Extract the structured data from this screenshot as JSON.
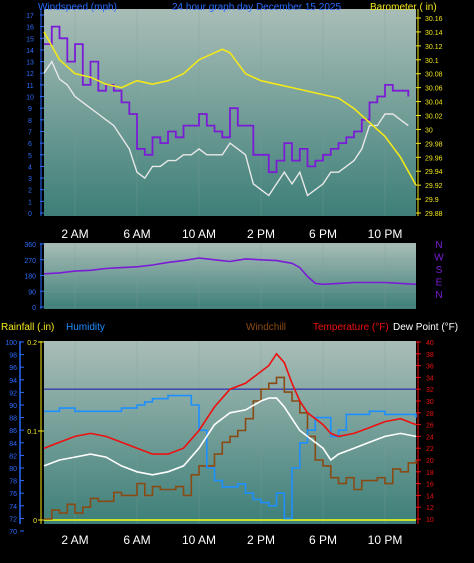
{
  "colors": {
    "background": "#000000",
    "panel_top": "#a9bdb7",
    "panel_bottom": "#3d7f78",
    "wind": "#7a1cd6",
    "gust": "#7a1cd6",
    "wind_avg": "#e8e8e8",
    "barometer": "#f2e81a",
    "direction": "#7a1cd6",
    "rain": "#c8e22a",
    "humidity": "#1e8fff",
    "windchill": "#8a4a14",
    "temperature": "#ee1010",
    "dewpoint": "#ffffff",
    "tick_blue": "#2a6cff",
    "tick_yellow": "#f2e81a",
    "tick_red": "#ee1010",
    "grid": "#7f9b96",
    "threshold": "#3a3aa8"
  },
  "chart_data": [
    {
      "type": "line",
      "name": "wind_barometer",
      "title": "24 hour graph day   December 15 2025",
      "left_label": "Windspeed (mph)",
      "right_label": "Barometer ( in)",
      "x_unit": "hours since midnight",
      "xlim": [
        0,
        24
      ],
      "x_ticks": [
        {
          "x": 2,
          "label": "2 AM"
        },
        {
          "x": 6,
          "label": "6 AM"
        },
        {
          "x": 10,
          "label": "10 AM"
        },
        {
          "x": 14,
          "label": "2 PM"
        },
        {
          "x": 18,
          "label": "6 PM"
        },
        {
          "x": 22,
          "label": "10 PM"
        }
      ],
      "y_left": {
        "min": 0,
        "max": 17,
        "ticks": [
          0,
          1,
          2,
          3,
          4,
          5,
          6,
          7,
          8,
          9,
          10,
          11,
          12,
          13,
          14,
          15,
          16,
          17
        ]
      },
      "y_right": {
        "min": 29.88,
        "max": 30.16,
        "ticks": [
          "29.88",
          "29.9",
          "29.92",
          "29.94",
          "29.96",
          "29.98",
          "30",
          "30.02",
          "30.04",
          "30.06",
          "30.08",
          "30.1",
          "30.12",
          "30.14",
          "30.16"
        ]
      },
      "series": [
        {
          "key": "gust",
          "axis": "left",
          "x": [
            0,
            0.5,
            1,
            1.5,
            2,
            2.5,
            3,
            3.5,
            4,
            4.5,
            5,
            5.5,
            6,
            6.5,
            7,
            7.5,
            8,
            8.5,
            9,
            9.5,
            10,
            10.5,
            11,
            11.5,
            12,
            12.5,
            13,
            13.5,
            14,
            14.5,
            15,
            15.5,
            16,
            16.5,
            17,
            17.5,
            18,
            18.5,
            19,
            19.5,
            20,
            20.5,
            21,
            21.5,
            22,
            22.5,
            23,
            23.5
          ],
          "y": [
            14.5,
            16,
            15,
            13,
            14.5,
            11,
            13,
            10.5,
            11,
            10.5,
            9.5,
            8.5,
            5.5,
            5,
            6.5,
            6,
            7,
            6.5,
            7.5,
            7.5,
            8.5,
            7.5,
            7,
            6.5,
            9,
            7.5,
            7.5,
            5,
            5,
            3.5,
            4.5,
            6,
            4.5,
            5.5,
            4,
            4.5,
            5,
            5.5,
            6,
            6.5,
            7,
            8,
            9.5,
            10,
            11,
            10.5,
            10.5,
            10
          ]
        },
        {
          "key": "wind_avg",
          "axis": "left",
          "x": [
            0,
            0.5,
            1,
            1.5,
            2,
            2.5,
            3,
            3.5,
            4,
            4.5,
            5,
            5.5,
            6,
            6.5,
            7,
            7.5,
            8,
            8.5,
            9,
            9.5,
            10,
            10.5,
            11,
            11.5,
            12,
            12.5,
            13,
            13.5,
            14,
            14.5,
            15,
            15.5,
            16,
            16.5,
            17,
            17.5,
            18,
            18.5,
            19,
            19.5,
            20,
            20.5,
            21,
            21.5,
            22,
            22.5,
            23,
            23.5
          ],
          "y": [
            12,
            13,
            11.5,
            11,
            10,
            9.5,
            9,
            8.5,
            8,
            7.5,
            6.5,
            5.5,
            3.5,
            3,
            4,
            4,
            4.5,
            4.5,
            5,
            5,
            5.5,
            5,
            5,
            5,
            6,
            5.5,
            5,
            2.5,
            2,
            1.5,
            2.5,
            3.5,
            2.5,
            3.5,
            1.5,
            2,
            2.5,
            3.5,
            3.5,
            4,
            4.5,
            5.5,
            7.5,
            7.5,
            8.5,
            8.5,
            8,
            7.5
          ]
        },
        {
          "key": "barometer",
          "axis": "right",
          "x": [
            0,
            1,
            2,
            3,
            4,
            5,
            6,
            7,
            8,
            9,
            10,
            11,
            11.5,
            12,
            12.5,
            13,
            14,
            15,
            16,
            17,
            18,
            19,
            20,
            21,
            22,
            23,
            24
          ],
          "y": [
            30.14,
            30.1,
            30.08,
            30.075,
            30.065,
            30.06,
            30.07,
            30.065,
            30.07,
            30.08,
            30.1,
            30.11,
            30.115,
            30.11,
            30.095,
            30.08,
            30.07,
            30.065,
            30.06,
            30.055,
            30.05,
            30.045,
            30.03,
            30.01,
            29.99,
            29.96,
            29.92
          ]
        }
      ]
    },
    {
      "type": "line",
      "name": "wind_direction",
      "x_unit": "hours since midnight",
      "xlim": [
        0,
        24
      ],
      "y_left": {
        "min": 0,
        "max": 360,
        "ticks": [
          0,
          90,
          180,
          270,
          360
        ]
      },
      "compass": [
        "N",
        "W",
        "S",
        "E",
        "N"
      ],
      "series": [
        {
          "key": "direction",
          "axis": "left",
          "x": [
            0,
            1,
            2,
            3,
            4,
            5,
            6,
            7,
            8,
            9,
            10,
            11,
            12,
            13,
            14,
            15,
            16,
            16.5,
            17,
            17.5,
            18,
            19,
            20,
            21,
            22,
            23,
            24
          ],
          "y": [
            190,
            195,
            205,
            210,
            220,
            225,
            230,
            240,
            255,
            265,
            280,
            270,
            260,
            275,
            270,
            265,
            250,
            225,
            175,
            135,
            130,
            135,
            140,
            140,
            140,
            135,
            130
          ]
        }
      ]
    },
    {
      "type": "line",
      "name": "rain_humidity_temperature",
      "left_label_rain": "Rainfall (.in)",
      "left_label_humidity": "Humidity",
      "right_label_windchill": "Windchill",
      "right_label_temperature": "Temperature (°F)",
      "right_label_dewpoint": "Dew Point (°F)",
      "x_unit": "hours since midnight",
      "xlim": [
        0,
        24
      ],
      "x_ticks": [
        {
          "x": 2,
          "label": "2 AM"
        },
        {
          "x": 6,
          "label": "6 AM"
        },
        {
          "x": 10,
          "label": "10 AM"
        },
        {
          "x": 14,
          "label": "2 PM"
        },
        {
          "x": 18,
          "label": "6 PM"
        },
        {
          "x": 22,
          "label": "10 PM"
        }
      ],
      "y_rain": {
        "min": 0,
        "max": 0.2,
        "ticks": [
          {
            "v": 0,
            "label": "0"
          },
          {
            "v": 0.1,
            "label": "0.1"
          },
          {
            "v": 0.2,
            "label": "0.2"
          }
        ]
      },
      "y_humidity": {
        "min": 70,
        "max": 100,
        "ticks": [
          70,
          72,
          74,
          76,
          78,
          80,
          82,
          84,
          86,
          88,
          90,
          92,
          94,
          96,
          98,
          100
        ]
      },
      "y_temp": {
        "min": 10,
        "max": 40,
        "ticks": [
          10,
          12,
          14,
          16,
          18,
          20,
          22,
          24,
          26,
          28,
          30,
          32,
          34,
          36,
          38,
          40
        ]
      },
      "reference_line_temp": 32,
      "series": [
        {
          "key": "rain",
          "axis": "rain",
          "x": [
            0,
            24
          ],
          "y": [
            0,
            0
          ]
        },
        {
          "key": "humidity",
          "axis": "humidity",
          "x": [
            0,
            1,
            2,
            3,
            4,
            5,
            6,
            6.5,
            7,
            7.5,
            8,
            8.5,
            9,
            9.5,
            10,
            10.5,
            11,
            11.5,
            12,
            12.5,
            13,
            13.5,
            14,
            14.5,
            15,
            15.5,
            16,
            16.5,
            17,
            17.5,
            18,
            18.5,
            19,
            19.5,
            20,
            21,
            22,
            23,
            24
          ],
          "y": [
            89,
            89.5,
            89,
            89,
            89,
            89.5,
            90,
            90.5,
            91,
            91,
            91.5,
            91.5,
            91.5,
            90,
            86,
            80,
            78,
            77,
            77,
            77.5,
            76,
            75,
            74.5,
            74,
            76,
            72,
            80,
            84,
            86,
            88,
            88,
            85,
            86,
            88.5,
            88.5,
            89,
            88.5,
            88.5,
            88
          ]
        },
        {
          "key": "temperature",
          "axis": "temp",
          "x": [
            0,
            1,
            2,
            3,
            4,
            5,
            6,
            7,
            8,
            9,
            10,
            11,
            12,
            13,
            14,
            14.5,
            15,
            15.5,
            16,
            16.5,
            17,
            17.5,
            18,
            18.5,
            19,
            20,
            21,
            22,
            23,
            24
          ],
          "y": [
            22,
            23,
            24,
            24.5,
            24,
            23,
            22,
            21,
            21,
            22,
            25,
            29,
            32,
            33,
            35,
            36,
            38,
            36.5,
            33,
            30,
            28,
            27,
            26,
            24.5,
            24,
            24.5,
            25.5,
            26.5,
            27,
            26
          ]
        },
        {
          "key": "dewpoint",
          "axis": "temp",
          "x": [
            0,
            1,
            2,
            3,
            4,
            5,
            6,
            7,
            8,
            9,
            10,
            11,
            12,
            13,
            14,
            14.5,
            15,
            15.5,
            16,
            16.5,
            17,
            17.5,
            18,
            18.5,
            19,
            20,
            21,
            22,
            23,
            24
          ],
          "y": [
            19,
            20,
            20.5,
            21,
            20.5,
            19,
            18,
            17.5,
            18,
            19,
            22,
            26,
            28,
            28.5,
            30,
            30.5,
            30.5,
            29,
            27,
            25,
            24,
            23,
            22,
            20,
            21,
            22,
            23,
            24,
            24.5,
            24
          ]
        },
        {
          "key": "windchill",
          "axis": "temp",
          "x": [
            0,
            0.5,
            1,
            1.5,
            2,
            2.5,
            3,
            3.5,
            4,
            4.5,
            5,
            5.5,
            6,
            6.5,
            7,
            7.5,
            8,
            8.5,
            9,
            9.5,
            10,
            10.5,
            11,
            11.5,
            12,
            12.5,
            13,
            13.5,
            14,
            14.5,
            15,
            15.5,
            16,
            16.5,
            17,
            17.5,
            18,
            18.5,
            19,
            19.5,
            20,
            20.5,
            21,
            21.5,
            22,
            22.5,
            23,
            23.5,
            24
          ],
          "y": [
            10,
            11.5,
            11,
            12.5,
            11,
            12,
            13.5,
            13,
            13,
            14.5,
            14,
            14,
            16,
            14,
            15.5,
            15,
            15,
            15.5,
            14,
            17.5,
            19,
            19,
            21,
            23,
            24,
            25,
            27,
            30,
            32,
            33,
            34,
            31.5,
            30,
            28,
            24,
            20,
            19,
            17,
            16,
            17,
            15,
            16.5,
            16.5,
            17,
            16,
            18.5,
            18,
            19.5,
            20
          ]
        }
      ]
    }
  ]
}
